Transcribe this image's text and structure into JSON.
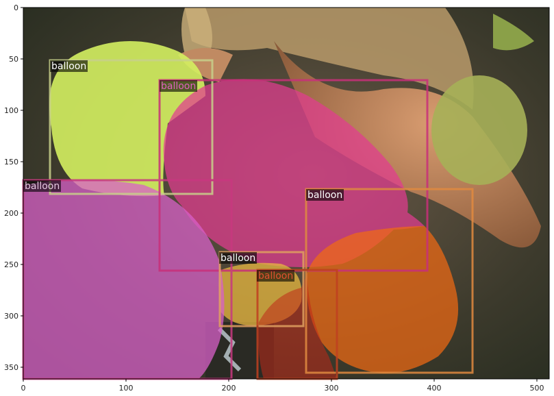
{
  "figure": {
    "x_ticks": [
      "0",
      "100",
      "200",
      "300",
      "400",
      "500"
    ],
    "y_ticks": [
      "0",
      "50",
      "100",
      "150",
      "200",
      "250",
      "300",
      "350"
    ]
  },
  "detections": [
    {
      "label": "balloon",
      "color": "#c8d08a",
      "text_color": "#ffffff"
    },
    {
      "label": "balloon",
      "color": "#c8307a",
      "text_color": "#e060c0"
    },
    {
      "label": "balloon",
      "color": "#c83880",
      "text_color": "#e6c8e0"
    },
    {
      "label": "balloon",
      "color": "#e08a40",
      "text_color": "#ffffff"
    },
    {
      "label": "balloon",
      "color": "#e0a060",
      "text_color": "#ffffff"
    },
    {
      "label": "balloon",
      "color": "#c04020",
      "text_color": "#e05030"
    }
  ],
  "segment_colors": {
    "green_balloon": "#d4f060",
    "pink_balloon": "#e23c90",
    "magenta_balloon": "#d860c8",
    "orange_balloon": "#f06a14",
    "yellow_balloon": "#e8b840",
    "red_balloon": "#c02818"
  }
}
